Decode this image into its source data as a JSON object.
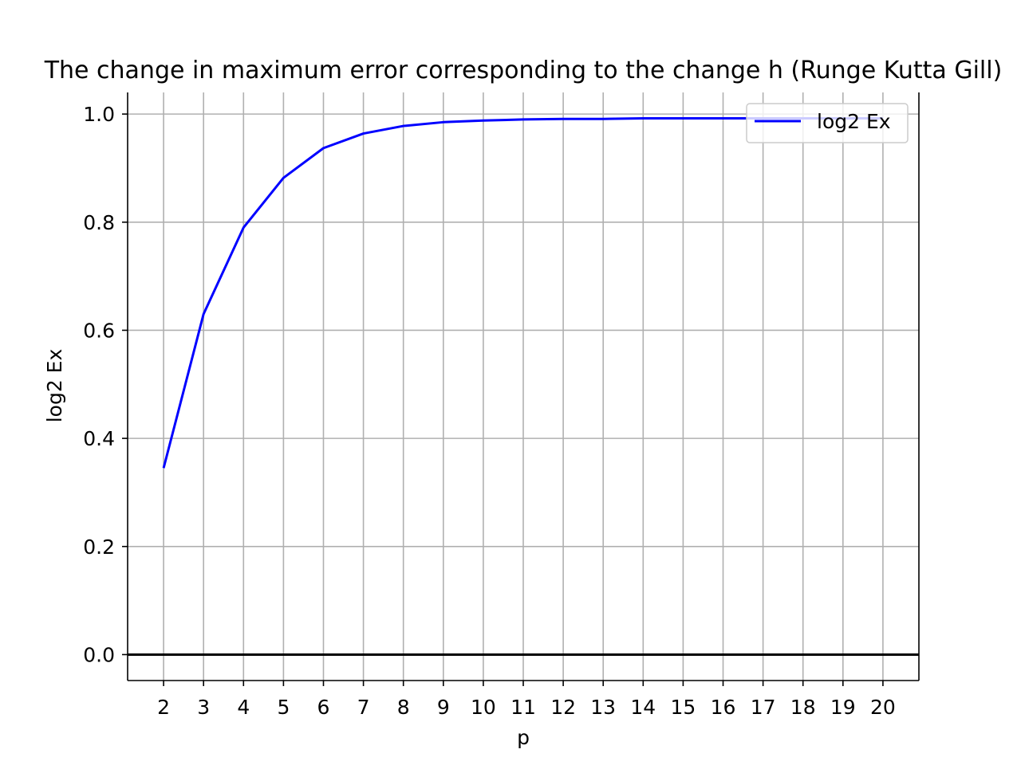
{
  "chart_data": {
    "type": "line",
    "title": "The change in maximum error corresponding to the change h (Runge Kutta Gill)",
    "xlabel": "p",
    "ylabel": "log2 Ex",
    "xlim": [
      1.1,
      20.9
    ],
    "ylim": [
      -0.048,
      1.04
    ],
    "x_ticks": [
      2,
      3,
      4,
      5,
      6,
      7,
      8,
      9,
      10,
      11,
      12,
      13,
      14,
      15,
      16,
      17,
      18,
      19,
      20
    ],
    "y_ticks": [
      0.0,
      0.2,
      0.4,
      0.6,
      0.8,
      1.0
    ],
    "y_tick_labels": [
      "0.0",
      "0.2",
      "0.4",
      "0.6",
      "0.8",
      "1.0"
    ],
    "grid": true,
    "hline_y": 0,
    "legend_position": "top-right",
    "x": [
      2,
      3,
      4,
      5,
      6,
      7,
      8,
      9,
      10,
      11,
      12,
      13,
      14,
      15,
      16,
      17,
      18,
      19,
      20
    ],
    "series": [
      {
        "name": "log2 Ex",
        "color": "#0000ff",
        "values": [
          0.345,
          0.63,
          0.79,
          0.882,
          0.937,
          0.964,
          0.978,
          0.985,
          0.988,
          0.99,
          0.991,
          0.991,
          0.992,
          0.992,
          0.992,
          0.992,
          0.992,
          0.992,
          0.992
        ]
      }
    ],
    "colors": {
      "grid": "#b0b0b0",
      "axis": "#000000",
      "zero_line": "#000000"
    }
  }
}
